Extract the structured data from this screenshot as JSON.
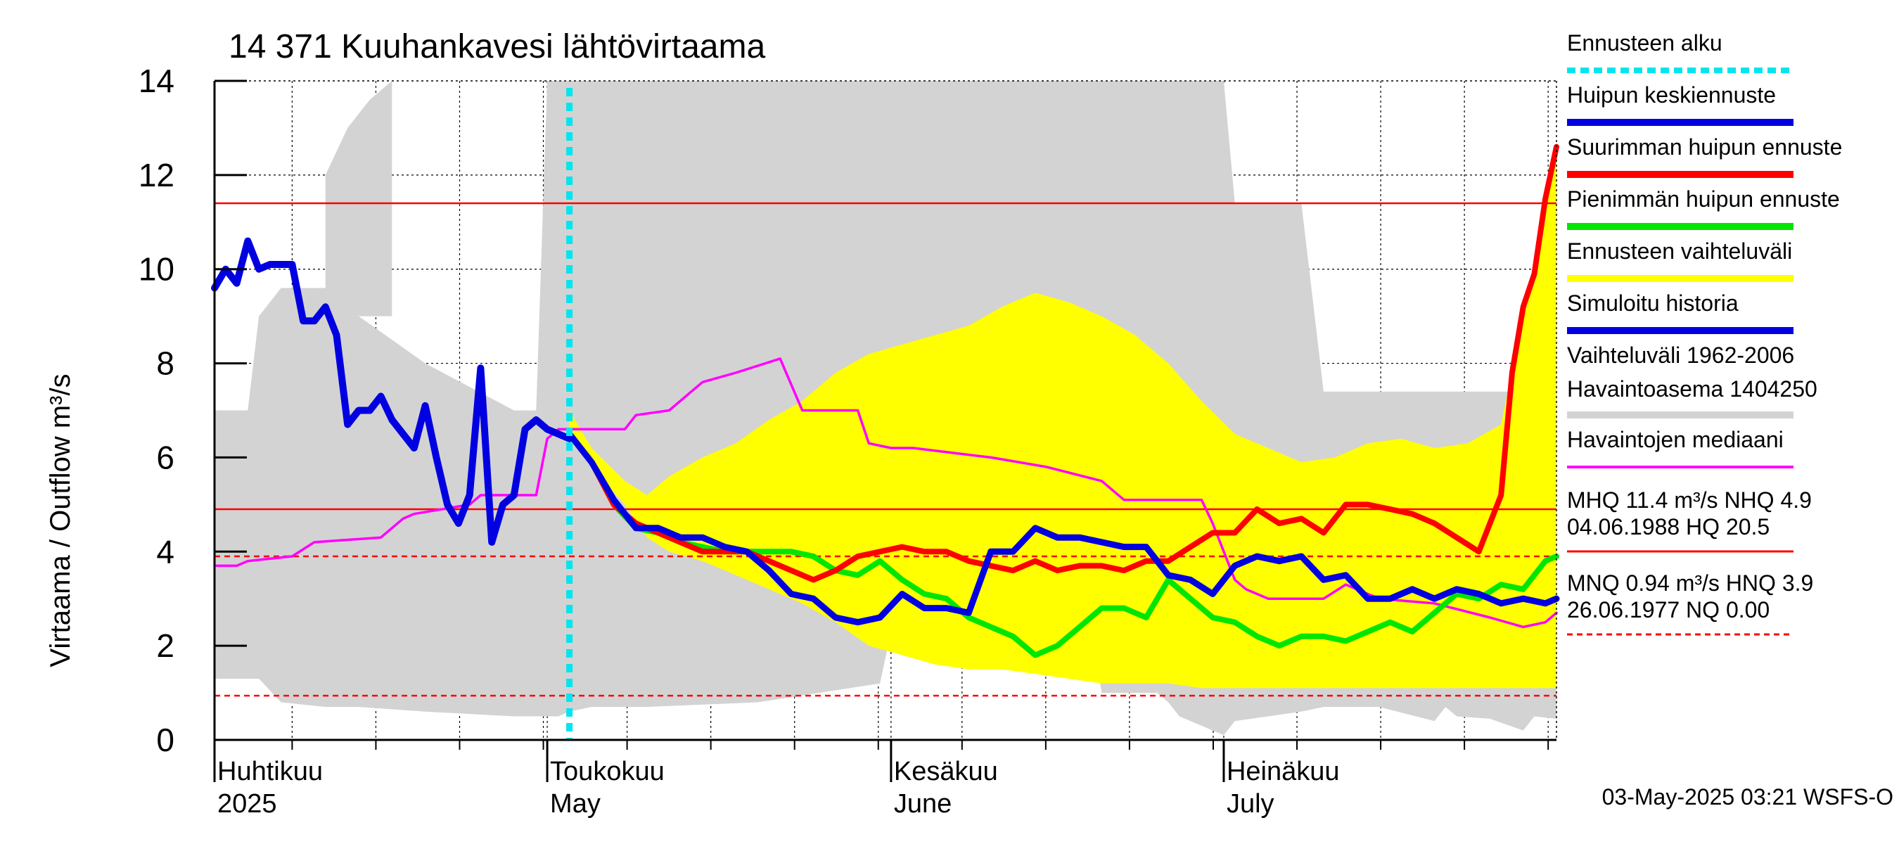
{
  "chart_data": {
    "type": "line",
    "title": "14 371 Kuuhankavesi lähtövirtaama",
    "ylabel": "Virtaama / Outflow    m³/s",
    "ylim": [
      0,
      14
    ],
    "yticks": [
      0,
      2,
      4,
      6,
      8,
      10,
      12,
      14
    ],
    "xlim": [
      "2025-04-01",
      "2025-07-31"
    ],
    "x_ticks": [
      {
        "line1": "Huhtikuu",
        "line2": "2025",
        "date": "2025-04-01"
      },
      {
        "line1": "Toukokuu",
        "line2": "May",
        "date": "2025-05-01"
      },
      {
        "line1": "Kesäkuu",
        "line2": "June",
        "date": "2025-06-01"
      },
      {
        "line1": "Heinäkuu",
        "line2": "July",
        "date": "2025-07-01"
      }
    ],
    "grid": true,
    "forecast_start": "2025-05-03",
    "reference_lines": {
      "MHQ": 11.4,
      "NHQ": 4.9,
      "HNQ": 3.9,
      "MNQ": 0.94,
      "NQ": 0.0
    },
    "colors": {
      "forecast_start": "#00e5ee",
      "mean_peak": "#0000e0",
      "max_peak": "#ff0000",
      "min_peak": "#00e600",
      "forecast_range": "#ffff00",
      "simulated_history": "#0000e0",
      "historical_range": "#d3d3d3",
      "median": "#ff00ff",
      "reference_red": "#ff0000"
    },
    "historical_range": {
      "x": [
        "2025-04-01",
        "2025-04-03",
        "2025-04-04",
        "2025-04-05",
        "2025-04-07",
        "2025-04-11",
        "2025-04-12",
        "2025-04-13",
        "2025-04-14",
        "2025-04-20",
        "2025-04-28",
        "2025-04-30",
        "2025-05-01",
        "2025-05-02",
        "2025-05-03",
        "2025-05-05",
        "2025-05-10",
        "2025-05-20",
        "2025-05-31",
        "2025-06-01",
        "2025-06-10",
        "2025-06-19",
        "2025-06-20",
        "2025-06-25",
        "2025-06-26",
        "2025-06-27",
        "2025-07-01",
        "2025-07-02",
        "2025-07-05",
        "2025-07-08",
        "2025-07-10",
        "2025-07-15",
        "2025-07-20",
        "2025-07-21",
        "2025-07-22",
        "2025-07-25",
        "2025-07-28",
        "2025-07-29",
        "2025-07-31"
      ],
      "low": [
        1.3,
        1.3,
        1.3,
        1.3,
        0.8,
        0.7,
        0.7,
        0.7,
        0.7,
        0.6,
        0.5,
        0.5,
        0.5,
        0.5,
        0.6,
        0.7,
        0.7,
        0.8,
        1.2,
        2.3,
        2.3,
        2.3,
        1.0,
        1.0,
        0.8,
        0.5,
        0.1,
        0.4,
        0.5,
        0.6,
        0.7,
        0.7,
        0.4,
        0.7,
        0.5,
        0.45,
        0.2,
        0.5,
        0.45
      ],
      "high": [
        7.0,
        7.0,
        7.0,
        9.0,
        9.6,
        9.6,
        9.6,
        9.0,
        9.0,
        8.0,
        7.0,
        7.0,
        14.0,
        14.0,
        14.0,
        14.0,
        14.0,
        14.0,
        14.0,
        14.0,
        14.0,
        14.0,
        14.0,
        14.0,
        14.0,
        14.0,
        14.0,
        11.4,
        11.4,
        11.4,
        7.4,
        7.4,
        7.4,
        7.4,
        7.4,
        7.4,
        7.4,
        7.4,
        6.8
      ]
    },
    "historical_range_extra": {
      "x": [
        "2025-04-11",
        "2025-04-12",
        "2025-04-13",
        "2025-04-14",
        "2025-04-15",
        "2025-04-16",
        "2025-04-17"
      ],
      "high": [
        12.0,
        12.5,
        13.0,
        13.3,
        13.6,
        13.8,
        14.0
      ]
    },
    "forecast_range": {
      "x": [
        "2025-05-03",
        "2025-05-05",
        "2025-05-08",
        "2025-05-10",
        "2025-05-12",
        "2025-05-15",
        "2025-05-18",
        "2025-05-21",
        "2025-05-24",
        "2025-05-27",
        "2025-05-30",
        "2025-06-02",
        "2025-06-05",
        "2025-06-08",
        "2025-06-11",
        "2025-06-14",
        "2025-06-17",
        "2025-06-20",
        "2025-06-23",
        "2025-06-26",
        "2025-06-29",
        "2025-07-02",
        "2025-07-05",
        "2025-07-08",
        "2025-07-11",
        "2025-07-14",
        "2025-07-17",
        "2025-07-20",
        "2025-07-23",
        "2025-07-26",
        "2025-07-28",
        "2025-07-29",
        "2025-07-30",
        "2025-07-31"
      ],
      "low": [
        6.4,
        5.8,
        5.0,
        4.3,
        4.0,
        3.8,
        3.5,
        3.2,
        2.9,
        2.5,
        2.0,
        1.8,
        1.6,
        1.5,
        1.5,
        1.4,
        1.3,
        1.2,
        1.2,
        1.2,
        1.1,
        1.1,
        1.1,
        1.1,
        1.1,
        1.1,
        1.1,
        1.1,
        1.1,
        1.1,
        1.1,
        1.1,
        1.1,
        1.1
      ],
      "high": [
        7.0,
        6.2,
        5.5,
        5.2,
        5.6,
        6.0,
        6.3,
        6.8,
        7.2,
        7.8,
        8.2,
        8.4,
        8.6,
        8.8,
        9.2,
        9.5,
        9.3,
        9.0,
        8.6,
        8.0,
        7.2,
        6.5,
        6.2,
        5.9,
        6.0,
        6.3,
        6.4,
        6.2,
        6.3,
        6.7,
        9.0,
        10.0,
        11.5,
        12.6
      ]
    },
    "series": [
      {
        "key": "median",
        "x": [
          "2025-04-01",
          "2025-04-03",
          "2025-04-04",
          "2025-04-08",
          "2025-04-10",
          "2025-04-16",
          "2025-04-18",
          "2025-04-19",
          "2025-04-24",
          "2025-04-25",
          "2025-04-30",
          "2025-05-01",
          "2025-05-02",
          "2025-05-08",
          "2025-05-09",
          "2025-05-12",
          "2025-05-14",
          "2025-05-15",
          "2025-05-18",
          "2025-05-22",
          "2025-05-24",
          "2025-05-26",
          "2025-05-29",
          "2025-05-30",
          "2025-06-01",
          "2025-06-03",
          "2025-06-10",
          "2025-06-15",
          "2025-06-20",
          "2025-06-22",
          "2025-06-29",
          "2025-06-30",
          "2025-07-02",
          "2025-07-03",
          "2025-07-05",
          "2025-07-10",
          "2025-07-12",
          "2025-07-15",
          "2025-07-20",
          "2025-07-25",
          "2025-07-28",
          "2025-07-30",
          "2025-07-31"
        ],
        "values": [
          3.7,
          3.7,
          3.8,
          3.9,
          4.2,
          4.3,
          4.7,
          4.8,
          5.0,
          5.2,
          5.2,
          6.4,
          6.6,
          6.6,
          6.9,
          7.0,
          7.4,
          7.6,
          7.8,
          8.1,
          7.0,
          7.0,
          7.0,
          6.3,
          6.2,
          6.2,
          6.0,
          5.8,
          5.5,
          5.1,
          5.1,
          4.6,
          3.4,
          3.2,
          3.0,
          3.0,
          3.3,
          3.0,
          2.9,
          2.6,
          2.4,
          2.5,
          2.7
        ]
      },
      {
        "key": "simulated_history",
        "x": [
          "2025-04-01",
          "2025-04-02",
          "2025-04-03",
          "2025-04-04",
          "2025-04-05",
          "2025-04-06",
          "2025-04-07",
          "2025-04-08",
          "2025-04-09",
          "2025-04-10",
          "2025-04-11",
          "2025-04-12",
          "2025-04-13",
          "2025-04-14",
          "2025-04-15",
          "2025-04-16",
          "2025-04-17",
          "2025-04-18",
          "2025-04-19",
          "2025-04-20",
          "2025-04-21",
          "2025-04-22",
          "2025-04-23",
          "2025-04-24",
          "2025-04-25",
          "2025-04-26",
          "2025-04-27",
          "2025-04-28",
          "2025-04-29",
          "2025-04-30",
          "2025-05-01",
          "2025-05-02",
          "2025-05-03"
        ],
        "values": [
          9.6,
          10.0,
          9.7,
          10.6,
          10.0,
          10.1,
          10.1,
          10.1,
          8.9,
          8.9,
          9.2,
          8.6,
          6.7,
          7.0,
          7.0,
          7.3,
          6.8,
          6.5,
          6.2,
          7.1,
          6.0,
          5.0,
          4.6,
          5.2,
          7.9,
          4.2,
          5.0,
          5.2,
          6.6,
          6.8,
          6.6,
          6.5,
          6.4
        ]
      },
      {
        "key": "min_peak",
        "x": [
          "2025-05-03",
          "2025-05-05",
          "2025-05-07",
          "2025-05-09",
          "2025-05-11",
          "2025-05-13",
          "2025-05-15",
          "2025-05-17",
          "2025-05-19",
          "2025-05-21",
          "2025-05-23",
          "2025-05-25",
          "2025-05-27",
          "2025-05-29",
          "2025-05-31",
          "2025-06-02",
          "2025-06-04",
          "2025-06-06",
          "2025-06-08",
          "2025-06-10",
          "2025-06-12",
          "2025-06-14",
          "2025-06-16",
          "2025-06-18",
          "2025-06-20",
          "2025-06-22",
          "2025-06-24",
          "2025-06-26",
          "2025-06-28",
          "2025-06-30",
          "2025-07-02",
          "2025-07-04",
          "2025-07-06",
          "2025-07-08",
          "2025-07-10",
          "2025-07-12",
          "2025-07-14",
          "2025-07-16",
          "2025-07-18",
          "2025-07-20",
          "2025-07-22",
          "2025-07-24",
          "2025-07-26",
          "2025-07-28",
          "2025-07-30",
          "2025-07-31"
        ],
        "values": [
          6.5,
          5.9,
          5.0,
          4.5,
          4.4,
          4.2,
          4.1,
          4.0,
          4.0,
          4.0,
          4.0,
          3.9,
          3.6,
          3.5,
          3.8,
          3.4,
          3.1,
          3.0,
          2.6,
          2.4,
          2.2,
          1.8,
          2.0,
          2.4,
          2.8,
          2.8,
          2.6,
          3.4,
          3.0,
          2.6,
          2.5,
          2.2,
          2.0,
          2.2,
          2.2,
          2.1,
          2.3,
          2.5,
          2.3,
          2.7,
          3.1,
          3.0,
          3.3,
          3.2,
          3.8,
          3.9
        ]
      },
      {
        "key": "max_peak",
        "x": [
          "2025-05-03",
          "2025-05-05",
          "2025-05-07",
          "2025-05-09",
          "2025-05-11",
          "2025-05-13",
          "2025-05-15",
          "2025-05-17",
          "2025-05-19",
          "2025-05-21",
          "2025-05-23",
          "2025-05-25",
          "2025-05-27",
          "2025-05-29",
          "2025-05-31",
          "2025-06-02",
          "2025-06-04",
          "2025-06-06",
          "2025-06-08",
          "2025-06-10",
          "2025-06-12",
          "2025-06-14",
          "2025-06-16",
          "2025-06-18",
          "2025-06-20",
          "2025-06-22",
          "2025-06-24",
          "2025-06-26",
          "2025-06-28",
          "2025-06-30",
          "2025-07-02",
          "2025-07-04",
          "2025-07-06",
          "2025-07-08",
          "2025-07-10",
          "2025-07-12",
          "2025-07-14",
          "2025-07-16",
          "2025-07-18",
          "2025-07-20",
          "2025-07-22",
          "2025-07-24",
          "2025-07-25",
          "2025-07-26",
          "2025-07-27",
          "2025-07-28",
          "2025-07-29",
          "2025-07-30",
          "2025-07-31"
        ],
        "values": [
          6.5,
          5.9,
          5.0,
          4.6,
          4.4,
          4.2,
          4.0,
          4.0,
          4.0,
          3.8,
          3.6,
          3.4,
          3.6,
          3.9,
          4.0,
          4.1,
          4.0,
          4.0,
          3.8,
          3.7,
          3.6,
          3.8,
          3.6,
          3.7,
          3.7,
          3.6,
          3.8,
          3.8,
          4.1,
          4.4,
          4.4,
          4.9,
          4.6,
          4.7,
          4.4,
          5.0,
          5.0,
          4.9,
          4.8,
          4.6,
          4.3,
          4.0,
          4.6,
          5.2,
          7.8,
          9.2,
          9.9,
          11.5,
          12.6
        ]
      },
      {
        "key": "mean_peak",
        "x": [
          "2025-05-03",
          "2025-05-05",
          "2025-05-07",
          "2025-05-09",
          "2025-05-11",
          "2025-05-13",
          "2025-05-15",
          "2025-05-17",
          "2025-05-19",
          "2025-05-21",
          "2025-05-23",
          "2025-05-25",
          "2025-05-27",
          "2025-05-29",
          "2025-05-31",
          "2025-06-02",
          "2025-06-04",
          "2025-06-06",
          "2025-06-08",
          "2025-06-10",
          "2025-06-12",
          "2025-06-14",
          "2025-06-16",
          "2025-06-18",
          "2025-06-20",
          "2025-06-22",
          "2025-06-24",
          "2025-06-26",
          "2025-06-28",
          "2025-06-30",
          "2025-07-02",
          "2025-07-04",
          "2025-07-06",
          "2025-07-08",
          "2025-07-10",
          "2025-07-12",
          "2025-07-14",
          "2025-07-16",
          "2025-07-18",
          "2025-07-20",
          "2025-07-22",
          "2025-07-24",
          "2025-07-26",
          "2025-07-28",
          "2025-07-30",
          "2025-07-31"
        ],
        "values": [
          6.5,
          5.9,
          5.1,
          4.5,
          4.5,
          4.3,
          4.3,
          4.1,
          4.0,
          3.6,
          3.1,
          3.0,
          2.6,
          2.5,
          2.6,
          3.1,
          2.8,
          2.8,
          2.7,
          4.0,
          4.0,
          4.5,
          4.3,
          4.3,
          4.2,
          4.1,
          4.1,
          3.5,
          3.4,
          3.1,
          3.7,
          3.9,
          3.8,
          3.9,
          3.4,
          3.5,
          3.0,
          3.0,
          3.2,
          3.0,
          3.2,
          3.1,
          2.9,
          3.0,
          2.9,
          3.0
        ]
      }
    ],
    "legend": [
      {
        "key": "forecast_start",
        "label": "Ennusteen alku",
        "style": "dotted"
      },
      {
        "key": "mean_peak",
        "label": "Huipun keskiennuste",
        "style": "line"
      },
      {
        "key": "max_peak",
        "label": "Suurimman huipun ennuste",
        "style": "line"
      },
      {
        "key": "min_peak",
        "label": "Pienimmän huipun ennuste",
        "style": "line"
      },
      {
        "key": "forecast_range",
        "label": "Ennusteen vaihteluväli",
        "style": "line"
      },
      {
        "key": "simulated_history",
        "label": "Simuloitu historia",
        "style": "line"
      },
      {
        "key": "historical_range",
        "label": "Vaihteluväli 1962-2006",
        "label2": " Havaintoasema 1404250",
        "style": "line"
      },
      {
        "key": "median",
        "label": "Havaintojen mediaani",
        "style": "thin"
      }
    ],
    "stats": [
      {
        "line1": "MHQ 11.4 m³/s NHQ  4.9",
        "line2": "04.06.1988 HQ 20.5",
        "style": "solid"
      },
      {
        "line1": "MNQ 0.94 m³/s HNQ  3.9",
        "line2": "26.06.1977 NQ 0.00",
        "style": "dashed"
      }
    ],
    "footer": "03-May-2025 03:21 WSFS-O"
  }
}
